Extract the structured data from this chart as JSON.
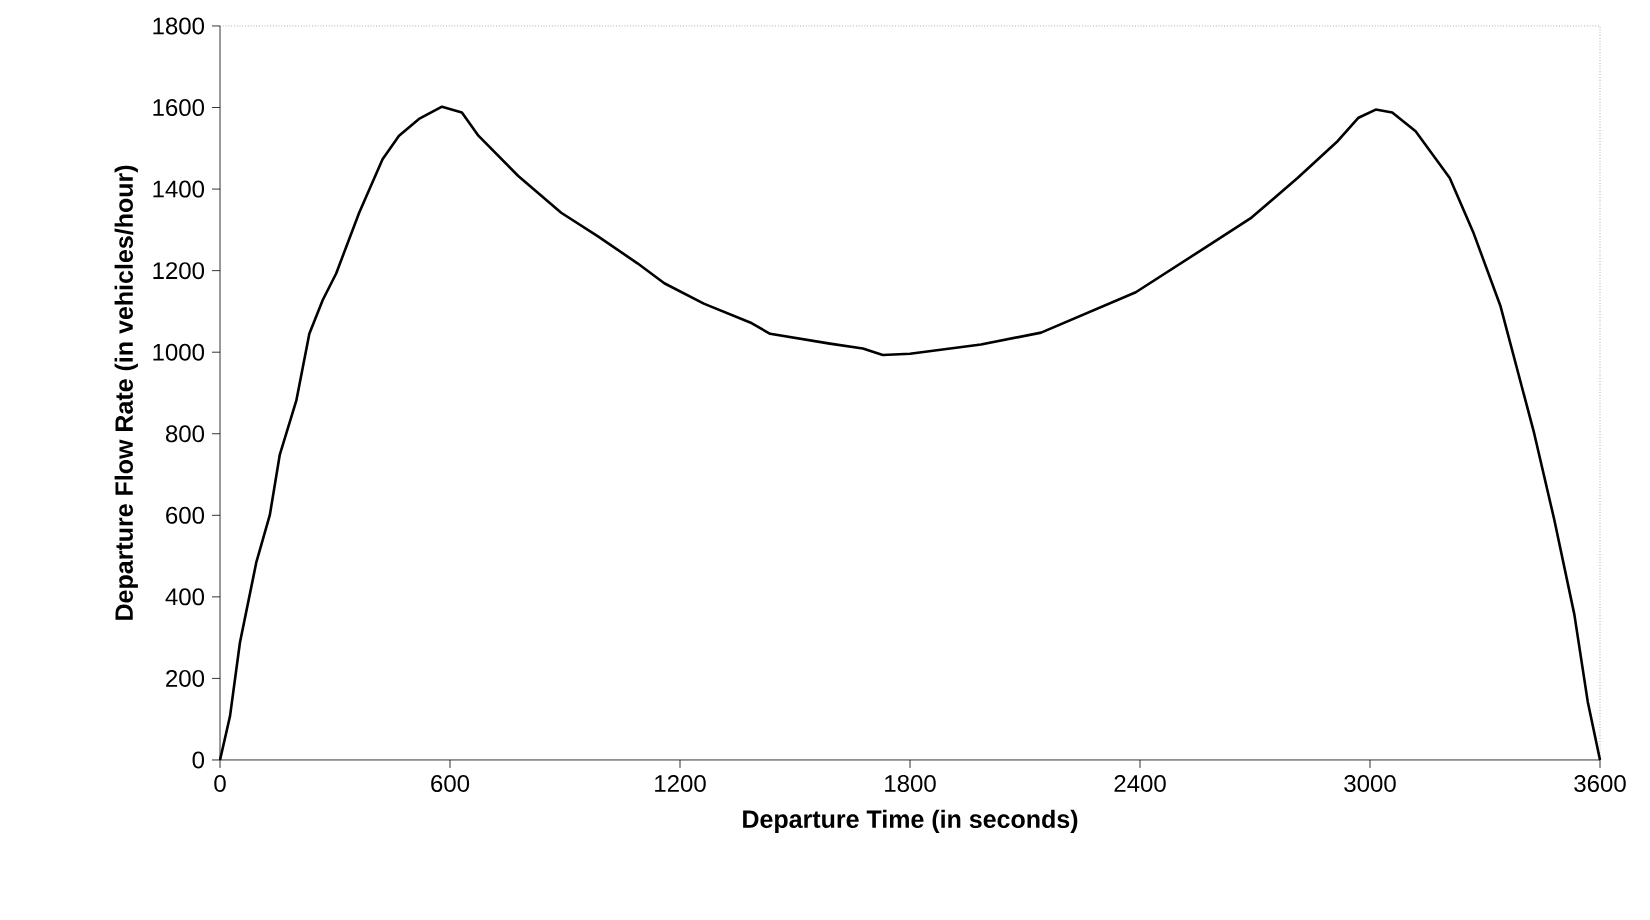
{
  "chart_data": {
    "type": "line",
    "xlabel": "Departure Time (in seconds)",
    "ylabel": "Departure Flow Rate (in vehicles/hour)",
    "x": [
      0,
      26,
      52,
      95,
      130,
      156,
      199,
      233,
      268,
      303,
      363,
      424,
      467,
      519,
      579,
      631,
      674,
      778,
      890,
      986,
      1089,
      1159,
      1262,
      1383,
      1435,
      1591,
      1677,
      1729,
      1800,
      1985,
      2142,
      2389,
      2566,
      2688,
      2811,
      2916,
      2970,
      3015,
      3058,
      3119,
      3208,
      3269,
      3340,
      3428,
      3481,
      3533,
      3568,
      3600
    ],
    "values": [
      0,
      107,
      288,
      486,
      601,
      749,
      881,
      1045,
      1128,
      1193,
      1342,
      1473,
      1531,
      1572,
      1602,
      1588,
      1531,
      1432,
      1342,
      1284,
      1218,
      1169,
      1119,
      1073,
      1045,
      1021,
      1009,
      993,
      996,
      1019,
      1048,
      1147,
      1254,
      1328,
      1427,
      1518,
      1575,
      1595,
      1588,
      1542,
      1427,
      1295,
      1114,
      802,
      588,
      357,
      143,
      0
    ],
    "color": "#000000",
    "marker": "none",
    "line_style": "solid",
    "xlim": [
      0,
      3600
    ],
    "xticks": [
      0,
      600,
      1200,
      1800,
      2400,
      3000,
      3600
    ],
    "ylim": [
      0,
      1800
    ],
    "yticks": [
      0,
      200,
      400,
      600,
      800,
      1000,
      1200,
      1400,
      1600,
      1800
    ],
    "grid": false
  }
}
